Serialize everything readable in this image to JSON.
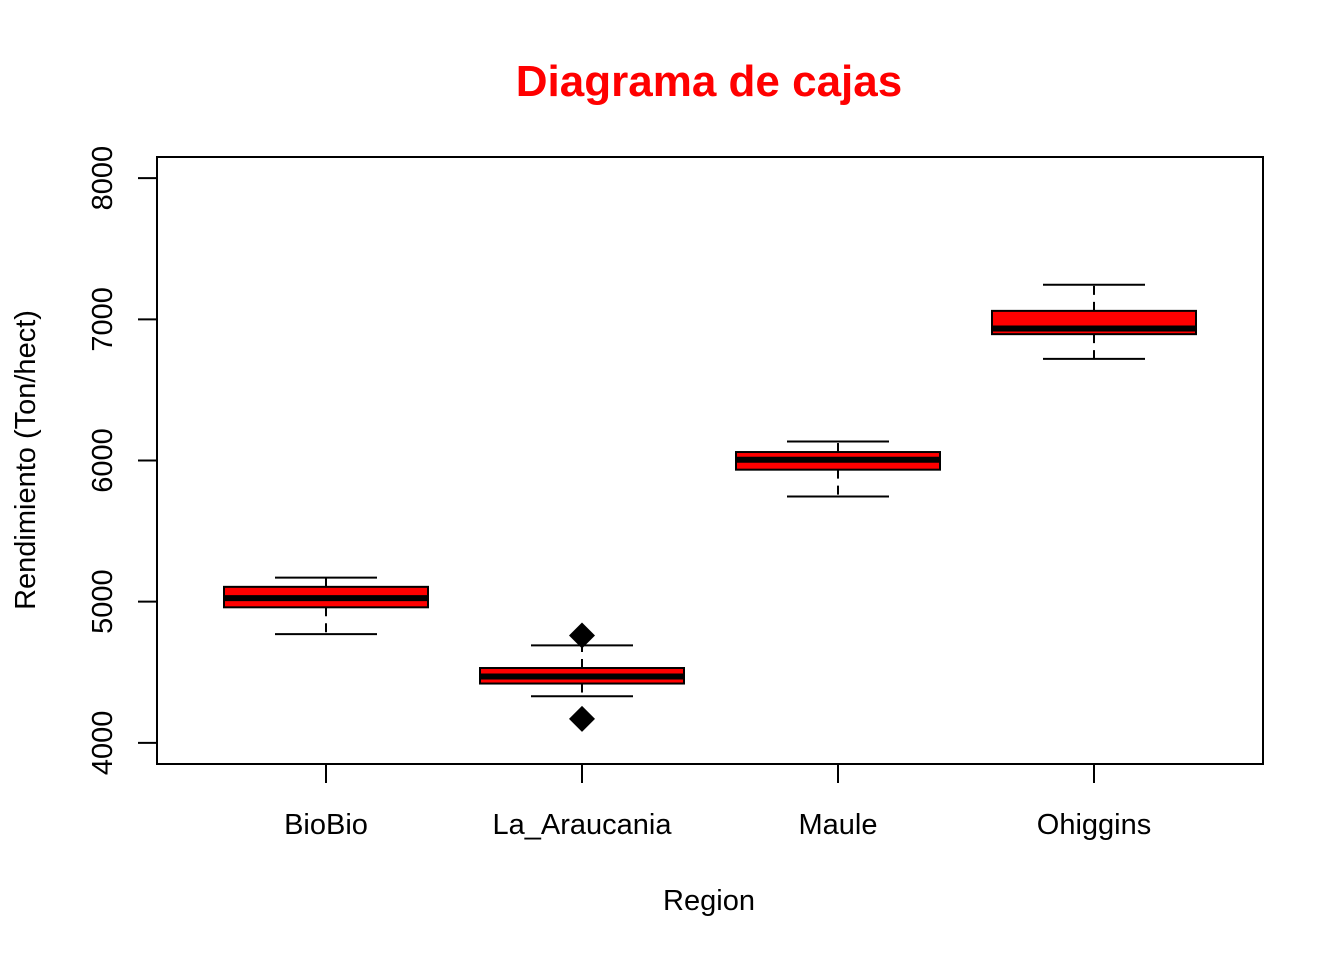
{
  "chart_data": {
    "type": "boxplot",
    "title": "Diagrama de cajas",
    "xlabel": "Region",
    "ylabel": "Rendimiento (Ton/hect)",
    "ylim": [
      3850,
      8150
    ],
    "yticks": [
      4000,
      5000,
      6000,
      7000,
      8000
    ],
    "categories": [
      "BioBio",
      "La_Araucania",
      "Maule",
      "Ohiggins"
    ],
    "boxes": [
      {
        "category": "BioBio",
        "whisker_low": 4770,
        "q1": 4960,
        "median": 5025,
        "q3": 5105,
        "whisker_high": 5170,
        "outliers": []
      },
      {
        "category": "La_Araucania",
        "whisker_low": 4330,
        "q1": 4420,
        "median": 4470,
        "q3": 4530,
        "whisker_high": 4690,
        "outliers": [
          4760,
          4170
        ]
      },
      {
        "category": "Maule",
        "whisker_low": 5745,
        "q1": 5935,
        "median": 6005,
        "q3": 6060,
        "whisker_high": 6135,
        "outliers": []
      },
      {
        "category": "Ohiggins",
        "whisker_low": 6720,
        "q1": 6895,
        "median": 6935,
        "q3": 7060,
        "whisker_high": 7245,
        "outliers": []
      }
    ],
    "colors": {
      "box_fill": "#ff0000",
      "title": "#ff0000",
      "outline": "#000000",
      "outlier": "#000000"
    },
    "grid": false,
    "legend": "none"
  }
}
